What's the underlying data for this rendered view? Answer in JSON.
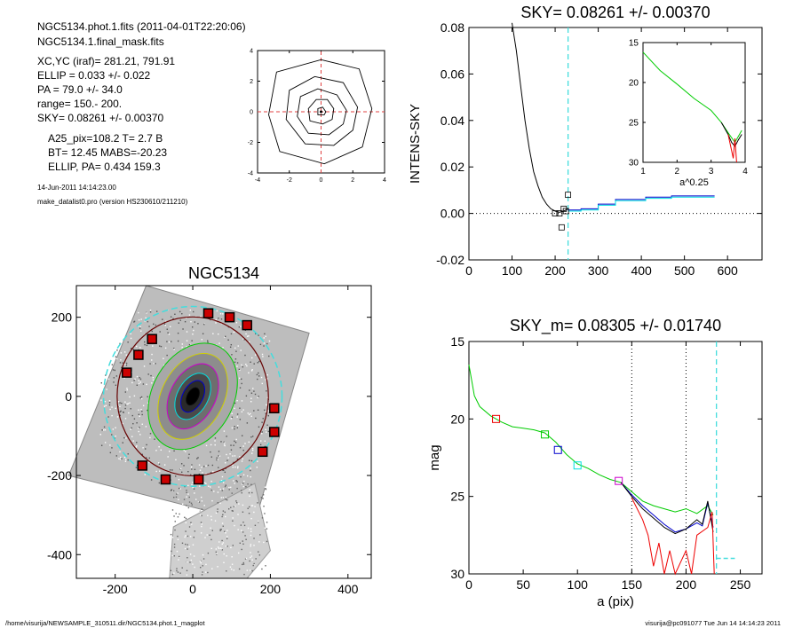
{
  "header": {
    "line1": "NGC5134.phot.1.fits  (2011-04-01T22:20:06)",
    "line2": "NGC5134.1.final_mask.fits",
    "xcyc": "XC,YC (iraf)=   281.21, 791.91",
    "ellip": "ELLIP = 0.033 +/- 0.022",
    "pa": "PA    = 79.0 +/-  34.0",
    "range": "range=  150.-  200.",
    "sky": "SKY= 0.08261 +/- 0.00370",
    "a25": "A25_pix=108.2   T= 2.7  B",
    "bt": "BT=  12.45   MABS=-20.23",
    "ellip_pa": "ELLIP, PA= 0.434   159.3",
    "date": "14-Jun-2011 14:14:23.00",
    "prog": "make_datalist0.pro (version HS230610/211210)"
  },
  "footer": {
    "left": "/home/visurija/NEWSAMPLE_310511.dir/NGC5134.phot.1_magplot",
    "right": "visurija@pc091077  Tue Jun 14 14:14:23 2011"
  },
  "colors": {
    "black": "#000000",
    "green": "#00cc00",
    "blue": "#0000cc",
    "cyan": "#00e0e0",
    "red": "#ee0000",
    "dashcyan": "#44dddd",
    "maroon": "#660000",
    "magenta": "#cc00cc"
  },
  "chart_data": [
    {
      "id": "contour",
      "type": "contour",
      "title": "",
      "xlim": [
        -4,
        4
      ],
      "ylim": [
        -4,
        4
      ],
      "xticks": [
        "-4",
        "-2",
        "0",
        "2",
        "4"
      ],
      "yticks": [
        "-4",
        "-2",
        "0",
        "2",
        "4"
      ],
      "contours": [
        [
          [
            0.3,
            0
          ],
          [
            0.1,
            0.3
          ],
          [
            -0.2,
            0.2
          ],
          [
            -0.2,
            -0.2
          ],
          [
            0.2,
            -0.2
          ]
        ],
        [
          [
            0.8,
            0.2
          ],
          [
            0.4,
            0.8
          ],
          [
            -0.3,
            0.8
          ],
          [
            -0.8,
            0.2
          ],
          [
            -0.7,
            -0.6
          ],
          [
            0.1,
            -0.8
          ],
          [
            0.7,
            -0.5
          ]
        ],
        [
          [
            1.6,
            0.1
          ],
          [
            1,
            1.1
          ],
          [
            -0.2,
            1.5
          ],
          [
            -1.3,
            1
          ],
          [
            -1.5,
            -0.3
          ],
          [
            -0.8,
            -1.4
          ],
          [
            0.5,
            -1.5
          ],
          [
            1.4,
            -0.8
          ]
        ],
        [
          [
            2.3,
            0.3
          ],
          [
            1.4,
            1.9
          ],
          [
            -0.4,
            2.3
          ],
          [
            -2,
            1.4
          ],
          [
            -2.2,
            -0.5
          ],
          [
            -1,
            -2.1
          ],
          [
            0.8,
            -2.2
          ],
          [
            2,
            -1.2
          ]
        ],
        [
          [
            3.2,
            0.2
          ],
          [
            2.4,
            2.8
          ],
          [
            0,
            3.4
          ],
          [
            -2.8,
            2.6
          ],
          [
            -3.3,
            -0.2
          ],
          [
            -2.6,
            -2.6
          ],
          [
            0.2,
            -3.4
          ],
          [
            2.6,
            -2.3
          ]
        ]
      ]
    },
    {
      "id": "sky",
      "type": "line",
      "title": "SKY= 0.08261 +/- 0.00370",
      "xlabel": "",
      "ylabel": "INTENS-SKY",
      "xlim": [
        0,
        680
      ],
      "ylim": [
        -0.02,
        0.08
      ],
      "xticks": [
        "0",
        "100",
        "200",
        "300",
        "400",
        "500",
        "600"
      ],
      "yticks": [
        "-0.02",
        "0.00",
        "0.02",
        "0.04",
        "0.06",
        "0.08"
      ],
      "series": [
        {
          "color": "black",
          "x": [
            100,
            110,
            120,
            130,
            140,
            150,
            160,
            170,
            180,
            190,
            200,
            210,
            220,
            230
          ],
          "y": [
            0.082,
            0.07,
            0.055,
            0.04,
            0.028,
            0.018,
            0.012,
            0.007,
            0.004,
            0.002,
            0.001,
            0.0005,
            0.001,
            0.002
          ]
        },
        {
          "color": "blue",
          "x": [
            230,
            260,
            260,
            300,
            300,
            340,
            340,
            410,
            410,
            470,
            470,
            570
          ],
          "y": [
            0.0015,
            0.0015,
            0.002,
            0.002,
            0.004,
            0.004,
            0.006,
            0.006,
            0.007,
            0.007,
            0.0075,
            0.0075
          ]
        },
        {
          "color": "cyan",
          "x": [
            230,
            260,
            260,
            300,
            300,
            340,
            340,
            410,
            410,
            470,
            470,
            570
          ],
          "y": [
            0.001,
            0.001,
            0.0015,
            0.0015,
            0.0035,
            0.0035,
            0.0055,
            0.0055,
            0.0065,
            0.0065,
            0.007,
            0.007
          ]
        }
      ],
      "squares": [
        [
          200,
          0.0
        ],
        [
          210,
          0.0
        ],
        [
          215,
          -0.006
        ],
        [
          220,
          0.002
        ],
        [
          225,
          0.001
        ],
        [
          230,
          0.008
        ]
      ],
      "vline": 230,
      "inset": {
        "xlabel": "a^0.25",
        "xlim": [
          1,
          4
        ],
        "ylim": [
          15,
          30
        ],
        "xticks": [
          "1",
          "2",
          "3",
          "4"
        ],
        "yticks": [
          "15",
          "20",
          "25",
          "30"
        ],
        "series": [
          {
            "color": "green",
            "x": [
              1,
              1.5,
              2,
              2.5,
              3,
              3.3,
              3.5,
              3.7,
              3.9
            ],
            "y": [
              16.2,
              18.5,
              20.2,
              22,
              23.5,
              25,
              26.3,
              27.5,
              26
            ]
          },
          {
            "color": "black",
            "x": [
              3.3,
              3.5,
              3.6,
              3.7,
              3.8,
              3.9
            ],
            "y": [
              25,
              26.5,
              27.5,
              28,
              27.2,
              26.5
            ]
          },
          {
            "color": "red",
            "x": [
              3.5,
              3.6,
              3.65,
              3.7,
              3.75
            ],
            "y": [
              26.5,
              28.5,
              29.5,
              27,
              30
            ]
          }
        ]
      }
    },
    {
      "id": "image",
      "type": "image",
      "title": "NGC5134",
      "xlim": [
        -300,
        460
      ],
      "ylim": [
        -460,
        280
      ],
      "xticks": [
        "-200",
        "0",
        "200",
        "400"
      ],
      "yticks": [
        "-400",
        "-200",
        "0",
        "200"
      ],
      "markers": [
        [
          40,
          210
        ],
        [
          95,
          200
        ],
        [
          140,
          180
        ],
        [
          -105,
          145
        ],
        [
          -140,
          105
        ],
        [
          -170,
          60
        ],
        [
          210,
          -30
        ],
        [
          210,
          -90
        ],
        [
          180,
          -140
        ],
        [
          -130,
          -175
        ],
        [
          -70,
          -210
        ],
        [
          15,
          -210
        ]
      ]
    },
    {
      "id": "mag",
      "type": "line",
      "title": "SKY_m=  0.08305 +/- 0.01740",
      "xlabel": "a (pix)",
      "ylabel": "mag",
      "xlim": [
        0,
        270
      ],
      "ylim": [
        15,
        30
      ],
      "xticks": [
        "0",
        "50",
        "100",
        "150",
        "200",
        "250"
      ],
      "yticks": [
        "15",
        "20",
        "25",
        "30"
      ],
      "series": [
        {
          "color": "green",
          "x": [
            0,
            5,
            10,
            20,
            30,
            40,
            50,
            60,
            70,
            80,
            90,
            100,
            110,
            120,
            130,
            140,
            150,
            160,
            170,
            180,
            190,
            200,
            210,
            220,
            225
          ],
          "y": [
            16.5,
            18.5,
            19.2,
            19.8,
            20.2,
            20.5,
            20.6,
            20.7,
            20.9,
            21.5,
            22.3,
            22.9,
            23.2,
            23.6,
            23.9,
            24.1,
            24.7,
            25.3,
            25.6,
            25.8,
            26.0,
            25.8,
            26.1,
            25.6,
            26.2
          ]
        },
        {
          "color": "blue",
          "x": [
            140,
            150,
            160,
            170,
            180,
            190,
            200,
            210,
            215,
            220,
            225
          ],
          "y": [
            24.1,
            24.9,
            25.6,
            26.2,
            26.8,
            27.3,
            27.1,
            26.7,
            26.9,
            25.4,
            27.0
          ]
        },
        {
          "color": "black",
          "x": [
            140,
            150,
            160,
            170,
            180,
            190,
            200,
            210,
            215,
            220,
            225
          ],
          "y": [
            24.1,
            25.0,
            25.8,
            26.4,
            27.0,
            27.4,
            27.1,
            26.5,
            26.8,
            25.3,
            27.3
          ]
        },
        {
          "color": "red",
          "x": [
            150,
            160,
            165,
            170,
            175,
            180,
            185,
            190,
            200,
            205,
            210,
            220,
            224,
            226
          ],
          "y": [
            25.1,
            26.5,
            27.5,
            29.5,
            28,
            30,
            28.5,
            30,
            28.5,
            30,
            27.5,
            27,
            26,
            30
          ]
        }
      ],
      "squares": [
        [
          25,
          20.0,
          "red"
        ],
        [
          70,
          21.0,
          "green"
        ],
        [
          82,
          22.0,
          "blue"
        ],
        [
          100,
          23.0,
          "cyan"
        ],
        [
          138,
          24.0,
          "magenta"
        ]
      ],
      "vdots": [
        150,
        200
      ],
      "vdash": 228,
      "hdash": {
        "x": [
          228,
          245
        ],
        "y": 29.0
      }
    }
  ]
}
